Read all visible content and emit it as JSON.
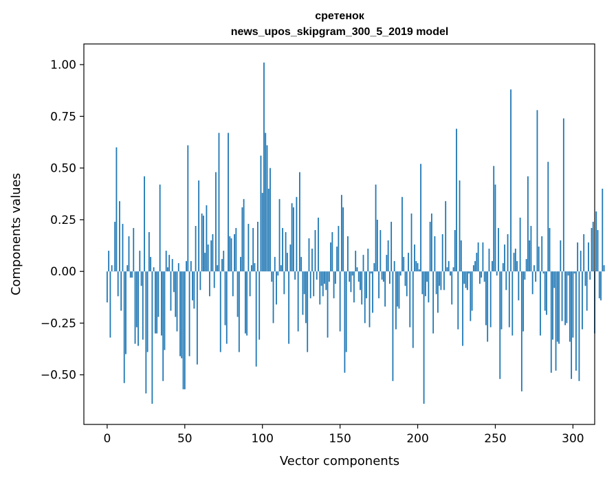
{
  "chart_data": {
    "type": "bar",
    "title": "сретенок",
    "subtitle": "news_upos_skipgram_300_5_2019 model",
    "xlabel": "Vector components",
    "ylabel": "Components values",
    "xlim": [
      -15,
      314
    ],
    "ylim": [
      -0.74,
      1.1
    ],
    "xticks": [
      0,
      50,
      100,
      150,
      200,
      250,
      300
    ],
    "yticks": [
      -0.5,
      -0.25,
      0.0,
      0.25,
      0.5,
      0.75,
      1.0
    ],
    "ytick_labels": [
      "−0.50",
      "−0.25",
      "0.00",
      "0.25",
      "0.50",
      "0.75",
      "1.00"
    ],
    "bar_color": "#1f77b4",
    "grid": false,
    "values": [
      -0.15,
      0.1,
      -0.32,
      0.03,
      0.0,
      0.24,
      0.6,
      -0.12,
      0.34,
      -0.19,
      0.23,
      -0.54,
      -0.4,
      0.03,
      0.17,
      -0.03,
      -0.03,
      0.21,
      -0.35,
      -0.27,
      -0.36,
      0.1,
      -0.07,
      -0.33,
      0.46,
      -0.59,
      -0.39,
      0.19,
      0.07,
      -0.64,
      0.02,
      -0.3,
      -0.3,
      -0.22,
      0.42,
      -0.31,
      -0.53,
      -0.38,
      0.1,
      0.02,
      0.08,
      -0.19,
      0.06,
      -0.1,
      -0.22,
      -0.29,
      0.04,
      -0.41,
      -0.42,
      -0.57,
      -0.57,
      0.05,
      0.61,
      -0.41,
      0.05,
      -0.14,
      -0.18,
      0.22,
      -0.45,
      0.44,
      -0.09,
      0.28,
      0.27,
      0.09,
      0.32,
      0.13,
      -0.12,
      0.15,
      0.18,
      -0.08,
      0.48,
      0.03,
      0.67,
      -0.39,
      0.06,
      0.1,
      -0.26,
      -0.35,
      0.67,
      0.17,
      0.16,
      -0.12,
      0.18,
      0.21,
      -0.22,
      -0.39,
      0.07,
      0.31,
      0.35,
      -0.3,
      -0.31,
      0.23,
      -0.12,
      0.03,
      0.21,
      0.04,
      -0.46,
      0.24,
      -0.33,
      0.56,
      0.38,
      1.01,
      0.67,
      0.61,
      0.4,
      0.5,
      -0.05,
      -0.25,
      0.07,
      -0.16,
      -0.02,
      0.35,
      0.03,
      0.21,
      -0.11,
      0.19,
      0.09,
      -0.35,
      0.13,
      0.33,
      0.31,
      -0.04,
      0.36,
      -0.29,
      0.48,
      0.07,
      -0.21,
      -0.11,
      -0.25,
      -0.39,
      0.16,
      -0.13,
      0.11,
      -0.12,
      0.2,
      -0.04,
      0.26,
      -0.16,
      -0.07,
      -0.12,
      -0.06,
      -0.09,
      -0.32,
      -0.05,
      0.14,
      0.19,
      -0.13,
      -0.06,
      0.12,
      0.22,
      -0.29,
      0.37,
      0.31,
      -0.49,
      -0.39,
      0.17,
      -0.05,
      -0.1,
      -0.02,
      -0.15,
      0.1,
      0.02,
      -0.05,
      -0.09,
      -0.16,
      0.08,
      -0.25,
      -0.13,
      0.11,
      -0.27,
      -0.01,
      -0.2,
      0.04,
      0.42,
      0.25,
      -0.13,
      0.2,
      -0.04,
      -0.05,
      -0.17,
      0.08,
      0.15,
      -0.06,
      0.24,
      -0.53,
      0.05,
      -0.28,
      -0.17,
      -0.18,
      -0.02,
      0.36,
      0.07,
      -0.07,
      -0.12,
      0.09,
      -0.27,
      0.28,
      -0.37,
      0.13,
      0.05,
      0.04,
      0.01,
      0.52,
      -0.11,
      -0.64,
      -0.12,
      -0.05,
      -0.15,
      0.24,
      0.28,
      -0.3,
      0.17,
      -0.11,
      -0.2,
      -0.07,
      -0.09,
      0.18,
      -0.09,
      0.34,
      0.02,
      0.05,
      -0.02,
      -0.16,
      0.02,
      0.2,
      0.69,
      -0.28,
      0.44,
      0.15,
      -0.36,
      -0.06,
      -0.08,
      -0.09,
      -0.01,
      -0.24,
      -0.19,
      0.03,
      0.05,
      0.09,
      0.14,
      -0.06,
      -0.03,
      0.14,
      -0.05,
      -0.26,
      -0.34,
      0.11,
      -0.27,
      0.05,
      0.51,
      0.42,
      -0.02,
      0.21,
      -0.52,
      -0.28,
      0.04,
      0.13,
      -0.09,
      0.18,
      -0.27,
      0.88,
      -0.31,
      0.09,
      0.11,
      0.05,
      -0.14,
      0.26,
      -0.58,
      -0.29,
      -0.04,
      0.06,
      0.46,
      0.15,
      0.22,
      -0.11,
      0.03,
      -0.05,
      0.78,
      0.12,
      -0.31,
      0.17,
      -0.01,
      -0.19,
      -0.21,
      0.53,
      0.21,
      -0.49,
      -0.33,
      -0.08,
      -0.48,
      -0.34,
      -0.35,
      0.15,
      -0.24,
      0.74,
      -0.26,
      -0.25,
      -0.02,
      -0.34,
      -0.52,
      -0.32,
      -0.01,
      -0.48,
      0.14,
      -0.53,
      0.1,
      -0.28,
      0.18,
      -0.07,
      -0.19,
      0.14,
      -0.04,
      0.21,
      0.24,
      -0.3,
      0.29,
      0.2,
      -0.13,
      -0.14,
      0.4,
      0.03
    ]
  }
}
